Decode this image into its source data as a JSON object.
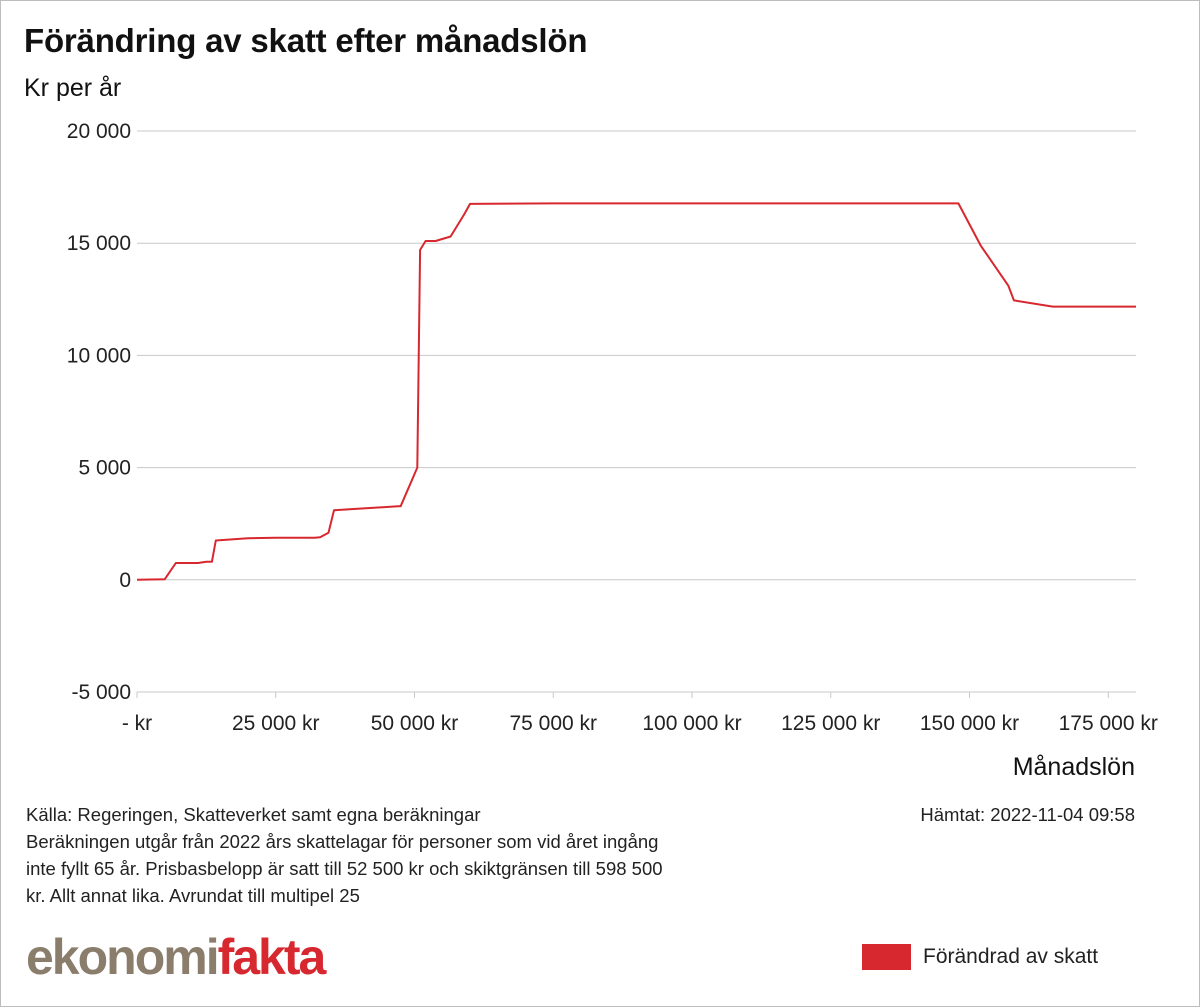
{
  "title": "Förändring av skatt efter månadslön",
  "source_lines": [
    "Källa: Regeringen, Skatteverket samt egna beräkningar",
    "Beräkningen utgår från 2022 års skattelagar för personer som vid året ingång",
    "inte fyllt 65 år. Prisbasbelopp är satt till 52 500 kr och skiktgränsen till 598 500",
    "kr. Allt annat lika. Avrundat till multipel 25"
  ],
  "fetched": "Hämtat: 2022-11-04 09:58",
  "logo": {
    "part1": "ekonomi",
    "part2": "fakta"
  },
  "colors": {
    "series": "#d7282f",
    "grid": "#c8c8c8",
    "logo_gray": "#8b7d6b",
    "logo_red": "#d7282f"
  },
  "chart_data": {
    "type": "line",
    "title": "Förändring av skatt efter månadslön",
    "ylabel": "Kr per år",
    "xlabel": "Månadslön",
    "xlim": [
      0,
      180000
    ],
    "ylim": [
      -5000,
      20000
    ],
    "y_ticks": [
      20000,
      15000,
      10000,
      5000,
      0,
      -5000
    ],
    "y_tick_labels": [
      "20 000",
      "15 000",
      "10 000",
      "5 000",
      "0",
      "-5 000"
    ],
    "x_ticks": [
      0,
      25000,
      50000,
      75000,
      100000,
      125000,
      150000,
      175000
    ],
    "x_tick_labels": [
      "-   kr",
      "25 000 kr",
      "50 000 kr",
      "75 000 kr",
      "100 000 kr",
      "125 000 kr",
      "150 000 kr",
      "175 000 kr"
    ],
    "grid": "horizontal",
    "legend_position": "bottom-right",
    "series": [
      {
        "name": "Förändrad av skatt",
        "color": "#d7282f",
        "x": [
          0,
          5000,
          7000,
          11000,
          12500,
          13500,
          14200,
          20000,
          25000,
          32000,
          33000,
          34500,
          35500,
          47000,
          47500,
          50500,
          51000,
          52000,
          53800,
          56500,
          59000,
          60000,
          75000,
          100000,
          125000,
          146000,
          148000,
          152000,
          157000,
          158000,
          165000,
          180000
        ],
        "y": [
          0,
          25,
          750,
          750,
          800,
          800,
          1750,
          1850,
          1875,
          1875,
          1900,
          2100,
          3100,
          3275,
          3275,
          5000,
          14700,
          15100,
          15100,
          15300,
          16300,
          16750,
          16775,
          16775,
          16775,
          16775,
          16775,
          14900,
          13100,
          12450,
          12175,
          12175
        ]
      }
    ]
  }
}
